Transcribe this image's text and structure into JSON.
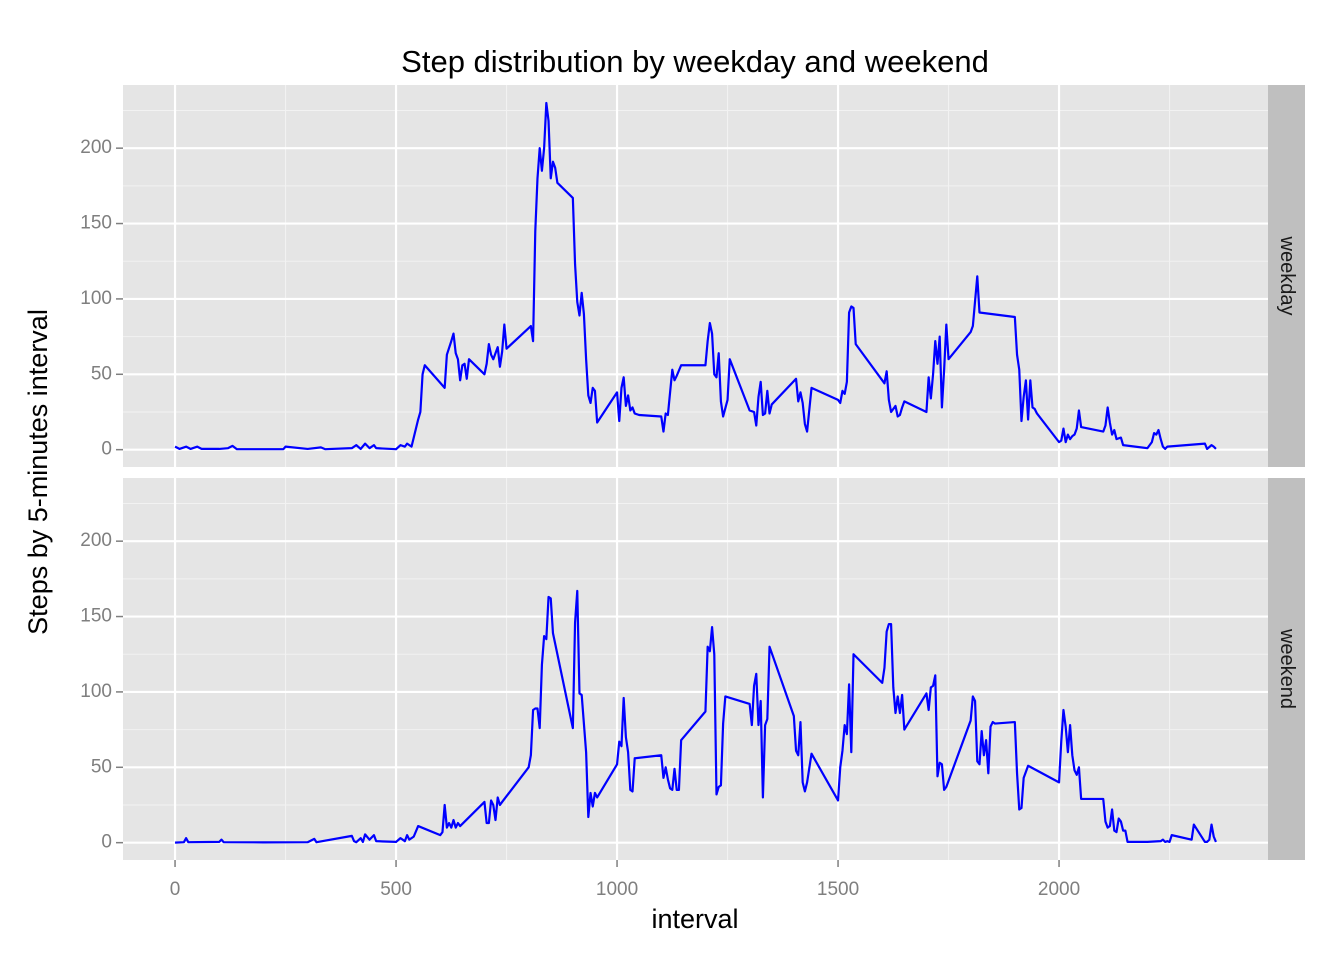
{
  "chart_data": {
    "type": "line",
    "title": "Step distribution by weekday and weekend",
    "xlabel": "interval",
    "ylabel": "Steps by 5-minutes interval",
    "xlim": [
      -117.75,
      2472.75
    ],
    "xticks": [
      0,
      500,
      1000,
      1500,
      2000
    ],
    "x_minor_ticks": [
      250,
      750,
      1250,
      1750,
      2250
    ],
    "ylim": [
      -11.5,
      241.9
    ],
    "yticks": [
      0,
      50,
      100,
      150,
      200
    ],
    "y_minor_ticks": [
      25,
      75,
      125,
      175,
      225
    ],
    "grid": true,
    "series": [
      {
        "name": "weekday",
        "color": "#0000ff",
        "x": [
          0,
          10,
          25,
          35,
          50,
          60,
          100,
          120,
          130,
          140,
          200,
          245,
          250,
          300,
          330,
          340,
          400,
          410,
          420,
          430,
          440,
          450,
          455,
          500,
          510,
          520,
          525,
          535,
          540,
          550,
          555,
          560,
          565,
          610,
          615,
          625,
          630,
          635,
          640,
          645,
          650,
          655,
          660,
          665,
          700,
          705,
          710,
          715,
          720,
          730,
          735,
          740,
          745,
          750,
          805,
          810,
          815,
          820,
          825,
          830,
          835,
          840,
          845,
          850,
          855,
          860,
          865,
          900,
          905,
          910,
          915,
          920,
          925,
          930,
          935,
          940,
          945,
          950,
          955,
          1000,
          1005,
          1010,
          1015,
          1020,
          1025,
          1030,
          1035,
          1040,
          1050,
          1100,
          1105,
          1110,
          1115,
          1120,
          1125,
          1130,
          1135,
          1145,
          1200,
          1205,
          1210,
          1215,
          1220,
          1225,
          1230,
          1235,
          1240,
          1250,
          1255,
          1300,
          1310,
          1315,
          1320,
          1325,
          1330,
          1335,
          1340,
          1345,
          1350,
          1405,
          1410,
          1415,
          1420,
          1425,
          1430,
          1440,
          1500,
          1505,
          1510,
          1515,
          1520,
          1525,
          1530,
          1535,
          1540,
          1600,
          1605,
          1610,
          1615,
          1620,
          1630,
          1635,
          1640,
          1645,
          1650,
          1700,
          1705,
          1710,
          1715,
          1720,
          1725,
          1730,
          1735,
          1740,
          1745,
          1750,
          1800,
          1805,
          1815,
          1820,
          1900,
          1905,
          1910,
          1915,
          1920,
          1925,
          1930,
          1935,
          1940,
          1945,
          1950,
          2000,
          2005,
          2010,
          2015,
          2020,
          2025,
          2030,
          2035,
          2040,
          2045,
          2050,
          2100,
          2105,
          2110,
          2115,
          2120,
          2125,
          2130,
          2140,
          2145,
          2200,
          2210,
          2215,
          2220,
          2225,
          2230,
          2235,
          2240,
          2245,
          2330,
          2335,
          2345,
          2350,
          2355
        ],
        "values": [
          2,
          0.5,
          2,
          0.5,
          2,
          0.5,
          0.5,
          1,
          2.5,
          0.3,
          0.3,
          0.3,
          2,
          0.5,
          1.5,
          0.3,
          1,
          3,
          0.5,
          4,
          1,
          3,
          1,
          0.3,
          3,
          2,
          4,
          2,
          8,
          20,
          25,
          50,
          56,
          41,
          63,
          72,
          77,
          64,
          60,
          46,
          56,
          57,
          47,
          60,
          50,
          57,
          70,
          63,
          60,
          68,
          55,
          65,
          83,
          67,
          82,
          72,
          145,
          180,
          200,
          185,
          200,
          230,
          218,
          180,
          191,
          187,
          177,
          167,
          123,
          98,
          89,
          104,
          90,
          60,
          36,
          31,
          41,
          39,
          18,
          38,
          19,
          41,
          48,
          29,
          36,
          26,
          28,
          24,
          23,
          22,
          12,
          24,
          23,
          38,
          53,
          46,
          49,
          56,
          56,
          72,
          84,
          77,
          50,
          48,
          64,
          32,
          22,
          33,
          60,
          26,
          25,
          16,
          35,
          45,
          23,
          24,
          39,
          24,
          30,
          47,
          32,
          38,
          31,
          17,
          12,
          41,
          33,
          31,
          39,
          37,
          45,
          91,
          95,
          94,
          70,
          46,
          44,
          52,
          33,
          25,
          29,
          22,
          23,
          28,
          32,
          25,
          48,
          34,
          50,
          72,
          57,
          75,
          28,
          53,
          83,
          60,
          78,
          82,
          115,
          91,
          88,
          63,
          53,
          19,
          35,
          46,
          20,
          46,
          28,
          27,
          24,
          5,
          6,
          14,
          5,
          10,
          7,
          9,
          10,
          14,
          26,
          15,
          12,
          16,
          28,
          18,
          10,
          13,
          7,
          8,
          3,
          1,
          5,
          11,
          10,
          13,
          7,
          2,
          0.5,
          2,
          4,
          0.5,
          3,
          2,
          0.5
        ]
      },
      {
        "name": "weekend",
        "color": "#0000ff",
        "x": [
          0,
          20,
          25,
          30,
          100,
          105,
          110,
          200,
          300,
          315,
          320,
          400,
          405,
          410,
          420,
          425,
          430,
          440,
          450,
          455,
          500,
          510,
          520,
          525,
          530,
          540,
          550,
          600,
          605,
          610,
          615,
          620,
          625,
          630,
          635,
          640,
          645,
          700,
          705,
          710,
          715,
          720,
          725,
          730,
          735,
          740,
          800,
          805,
          810,
          815,
          820,
          825,
          830,
          835,
          840,
          845,
          850,
          855,
          900,
          905,
          910,
          915,
          920,
          930,
          935,
          940,
          945,
          950,
          955,
          1000,
          1005,
          1010,
          1015,
          1020,
          1025,
          1030,
          1035,
          1040,
          1100,
          1105,
          1110,
          1115,
          1120,
          1125,
          1130,
          1135,
          1140,
          1145,
          1200,
          1205,
          1210,
          1215,
          1220,
          1225,
          1230,
          1235,
          1240,
          1245,
          1300,
          1305,
          1310,
          1315,
          1320,
          1325,
          1330,
          1335,
          1340,
          1345,
          1400,
          1405,
          1410,
          1415,
          1420,
          1425,
          1430,
          1440,
          1500,
          1505,
          1510,
          1515,
          1520,
          1525,
          1530,
          1535,
          1600,
          1605,
          1610,
          1615,
          1620,
          1625,
          1630,
          1635,
          1640,
          1645,
          1650,
          1700,
          1705,
          1710,
          1715,
          1720,
          1725,
          1730,
          1735,
          1740,
          1745,
          1800,
          1805,
          1810,
          1815,
          1820,
          1825,
          1830,
          1835,
          1840,
          1845,
          1850,
          1855,
          1900,
          1905,
          1910,
          1915,
          1920,
          1930,
          2000,
          2005,
          2010,
          2015,
          2020,
          2025,
          2030,
          2035,
          2040,
          2045,
          2050,
          2100,
          2105,
          2110,
          2115,
          2120,
          2125,
          2130,
          2135,
          2140,
          2145,
          2150,
          2155,
          2200,
          2230,
          2235,
          2240,
          2245,
          2250,
          2255,
          2300,
          2305,
          2330,
          2335,
          2340,
          2345,
          2350,
          2355
        ],
        "values": [
          0,
          0.3,
          3,
          0.3,
          0.5,
          2,
          0.3,
          0.2,
          0.3,
          2.5,
          0.3,
          4.5,
          1,
          0.3,
          3,
          0.5,
          5.5,
          2,
          5,
          1,
          0.5,
          3,
          1,
          5,
          2,
          4,
          11,
          5,
          7,
          25,
          10,
          13,
          10,
          15,
          10,
          13,
          11,
          27,
          13,
          13,
          28,
          25,
          15,
          30,
          25,
          27,
          50,
          58,
          88,
          89,
          89,
          76,
          118,
          137,
          135,
          163,
          162,
          139,
          76,
          146,
          167,
          99,
          98,
          60,
          17,
          33,
          24,
          33,
          30,
          52,
          67,
          64,
          96,
          70,
          60,
          35,
          34,
          56,
          58,
          43,
          50,
          42,
          36,
          35,
          49,
          35,
          35,
          68,
          87,
          130,
          127,
          143,
          125,
          32,
          37,
          38,
          79,
          97,
          92,
          78,
          104,
          112,
          78,
          94,
          30,
          78,
          82,
          130,
          84,
          61,
          58,
          80,
          40,
          34,
          40,
          59,
          28,
          50,
          61,
          78,
          72,
          105,
          60,
          125,
          106,
          116,
          140,
          145,
          145,
          103,
          86,
          97,
          86,
          98,
          75,
          99,
          88,
          103,
          104,
          111,
          44,
          53,
          52,
          35,
          37,
          81,
          97,
          94,
          54,
          52,
          74,
          58,
          68,
          46,
          77,
          80,
          79,
          80,
          46,
          22,
          23,
          43,
          51,
          40,
          67,
          88,
          77,
          60,
          78,
          58,
          48,
          45,
          50,
          29,
          29,
          14,
          10,
          11,
          22,
          8,
          7,
          16,
          14,
          8,
          8,
          0.5,
          0.5,
          1,
          2,
          0.5,
          1,
          0.5,
          5,
          2,
          12,
          0.5,
          0.5,
          2,
          12,
          4,
          0.5
        ]
      }
    ]
  }
}
